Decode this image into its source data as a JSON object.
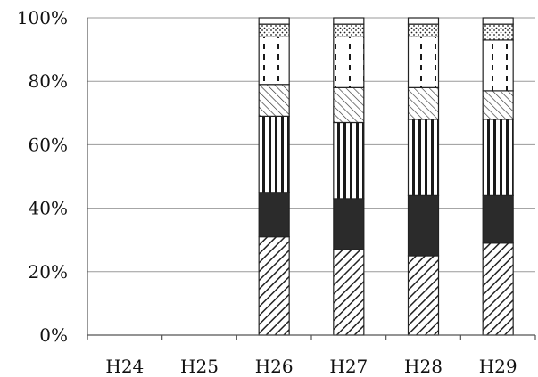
{
  "chart_data": {
    "type": "bar",
    "stacked": true,
    "title": "",
    "xlabel": "",
    "ylabel": "",
    "categories": [
      "H24",
      "H25",
      "H26",
      "H27",
      "H28",
      "H29"
    ],
    "ylim": [
      0,
      100
    ],
    "yticks": [
      0,
      20,
      40,
      60,
      80,
      100
    ],
    "ytick_labels": [
      "0%",
      "20%",
      "40%",
      "60%",
      "80%",
      "100%"
    ],
    "grid": true,
    "legend": "none",
    "series": [
      {
        "pattern": "diagonal-dense",
        "values": [
          null,
          null,
          31,
          27,
          25,
          29
        ]
      },
      {
        "pattern": "solid-dark",
        "values": [
          null,
          null,
          14,
          16,
          19,
          15
        ]
      },
      {
        "pattern": "vertical-stripes",
        "values": [
          null,
          null,
          24,
          24,
          24,
          24
        ]
      },
      {
        "pattern": "diagonal-light",
        "values": [
          null,
          null,
          10,
          11,
          10,
          9
        ]
      },
      {
        "pattern": "vertical-dashes",
        "values": [
          null,
          null,
          15,
          16,
          16,
          16
        ]
      },
      {
        "pattern": "dots",
        "values": [
          null,
          null,
          4,
          4,
          4,
          5
        ]
      },
      {
        "pattern": "white",
        "values": [
          null,
          null,
          2,
          2,
          2,
          2
        ]
      }
    ],
    "colors": {
      "grid": "#9a9a9a",
      "ink": "#222222",
      "solid_dark": "#2b2b2b"
    }
  }
}
